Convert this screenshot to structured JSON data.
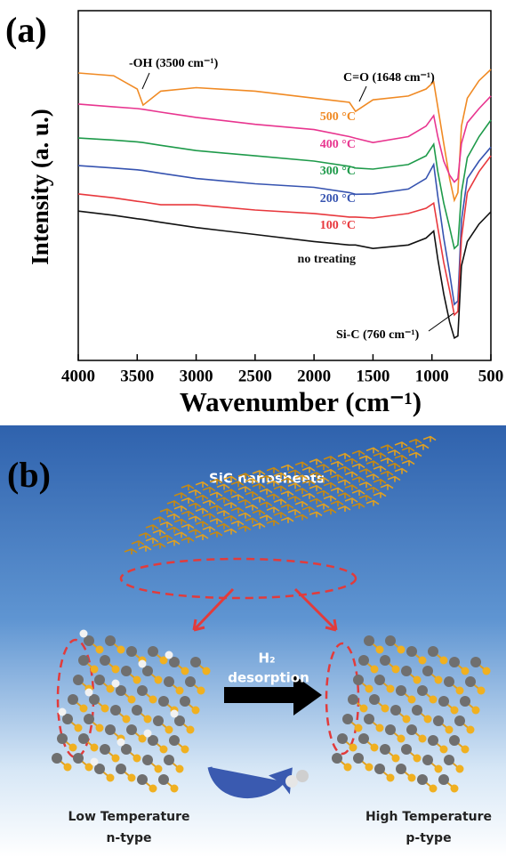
{
  "chart_data": {
    "type": "line",
    "panel_label": "(a)",
    "x_label": "Wavenumber (cm⁻¹)",
    "y_label": "Intensity (a. u.)",
    "x": [
      4000,
      3700,
      3500,
      3450,
      3300,
      3000,
      2500,
      2000,
      1700,
      1648,
      1500,
      1200,
      1050,
      985,
      950,
      900,
      850,
      810,
      780,
      750,
      700,
      600,
      500
    ],
    "xlim": [
      4000,
      500
    ],
    "xticks": [
      4000,
      3500,
      3000,
      2500,
      2000,
      1500,
      1000,
      500
    ],
    "ylim": [
      0,
      100
    ],
    "series": [
      {
        "name": "500 °C",
        "color": "#f08a24",
        "values": [
          82.2,
          81.4,
          77.6,
          73,
          77,
          78,
          77,
          75,
          73.8,
          71.2,
          74.5,
          75.6,
          77.6,
          79.6,
          72.5,
          62,
          52,
          45.8,
          48,
          67,
          75,
          80,
          83.2
        ]
      },
      {
        "name": "400 °C",
        "color": "#e8358f",
        "values": [
          73.3,
          72.5,
          72,
          71.8,
          71,
          69.5,
          67.5,
          66,
          64,
          63.5,
          62.3,
          64,
          67,
          70,
          64,
          57,
          53,
          51,
          52,
          62,
          68,
          72,
          75.6
        ]
      },
      {
        "name": "300 °C",
        "color": "#1e9a4a",
        "values": [
          63.6,
          63,
          62.5,
          62.3,
          61.5,
          60,
          58.5,
          57,
          55.5,
          55,
          54.7,
          56,
          58.5,
          61.8,
          54,
          45,
          38,
          32,
          33,
          48,
          58,
          64,
          68.7
        ]
      },
      {
        "name": "200 °C",
        "color": "#3653b0",
        "values": [
          55.7,
          55,
          54.5,
          54.3,
          53.5,
          52,
          50.5,
          49.5,
          48,
          47.5,
          47.6,
          49,
          52,
          56,
          47,
          35,
          25,
          16,
          17,
          40,
          52,
          57,
          61
        ]
      },
      {
        "name": "100 °C",
        "color": "#e8383d",
        "values": [
          47.6,
          46.5,
          45.5,
          45.3,
          44.5,
          44.5,
          43,
          42,
          41,
          41,
          40.7,
          42,
          43.5,
          45,
          38,
          28,
          20,
          13,
          14,
          35,
          48,
          54,
          58.5
        ]
      },
      {
        "name": "no treating",
        "color": "#111111",
        "values": [
          42.7,
          41.5,
          40.5,
          40.3,
          39.5,
          38,
          36,
          34,
          33,
          33,
          32,
          33,
          35,
          37,
          29,
          19,
          11,
          6.4,
          7,
          27,
          34,
          39,
          42.5
        ]
      }
    ],
    "annotations": [
      "-OH (3500 cm⁻¹)",
      "C=O (1648 cm⁻¹)",
      "Si-C (760 cm⁻¹)"
    ]
  },
  "diagram": {
    "panel_label": "(b)",
    "top_label": "SiC nanosheets",
    "arrow_label": [
      "H₂",
      "desorption"
    ],
    "left_label": [
      "Low Temperature",
      "n-type"
    ],
    "right_label": [
      "High Temperature",
      "p-type"
    ]
  }
}
